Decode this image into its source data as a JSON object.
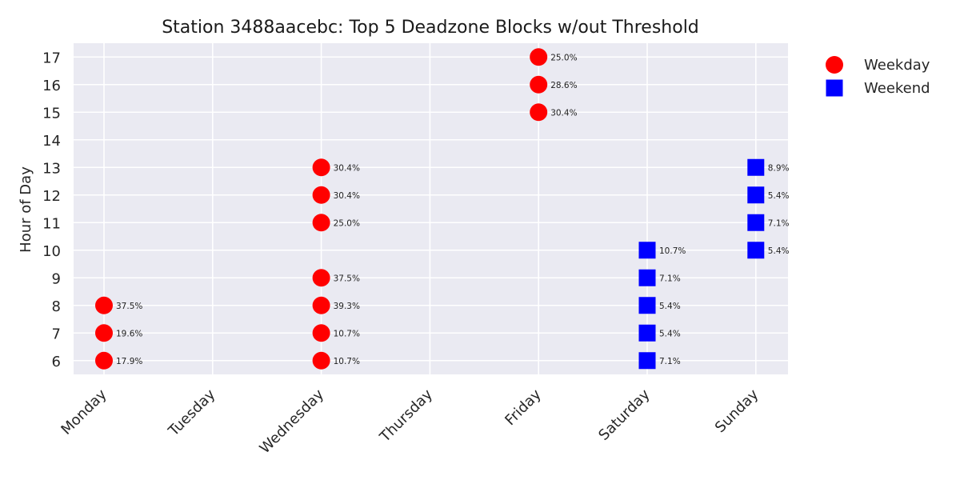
{
  "chart_data": {
    "type": "scatter",
    "title": "Station 3488aacebc: Top 5 Deadzone Blocks w/out Threshold",
    "xlabel": "",
    "ylabel": "Hour of Day",
    "categories": [
      "Monday",
      "Tuesday",
      "Wednesday",
      "Thursday",
      "Friday",
      "Saturday",
      "Sunday"
    ],
    "y_ticks": [
      6,
      7,
      8,
      9,
      10,
      11,
      12,
      13,
      14,
      15,
      16,
      17
    ],
    "ylim": [
      5.5,
      17.5
    ],
    "grid": true,
    "legend_position": "outside-top-right",
    "colors": {
      "Weekday": "#ff0000",
      "Weekend": "#0000ff",
      "background": "#eaeaf2",
      "grid": "#ffffff"
    },
    "series": [
      {
        "name": "Weekday",
        "marker": "circle",
        "points": [
          {
            "day": "Monday",
            "hour": 8,
            "label": "37.5%"
          },
          {
            "day": "Monday",
            "hour": 7,
            "label": "19.6%"
          },
          {
            "day": "Monday",
            "hour": 6,
            "label": "17.9%"
          },
          {
            "day": "Wednesday",
            "hour": 13,
            "label": "30.4%"
          },
          {
            "day": "Wednesday",
            "hour": 12,
            "label": "30.4%"
          },
          {
            "day": "Wednesday",
            "hour": 11,
            "label": "25.0%"
          },
          {
            "day": "Wednesday",
            "hour": 9,
            "label": "37.5%"
          },
          {
            "day": "Wednesday",
            "hour": 8,
            "label": "39.3%"
          },
          {
            "day": "Wednesday",
            "hour": 7,
            "label": "10.7%"
          },
          {
            "day": "Wednesday",
            "hour": 6,
            "label": "10.7%"
          },
          {
            "day": "Friday",
            "hour": 17,
            "label": "25.0%"
          },
          {
            "day": "Friday",
            "hour": 16,
            "label": "28.6%"
          },
          {
            "day": "Friday",
            "hour": 15,
            "label": "30.4%"
          }
        ]
      },
      {
        "name": "Weekend",
        "marker": "square",
        "points": [
          {
            "day": "Saturday",
            "hour": 10,
            "label": "10.7%"
          },
          {
            "day": "Saturday",
            "hour": 9,
            "label": "7.1%"
          },
          {
            "day": "Saturday",
            "hour": 8,
            "label": "5.4%"
          },
          {
            "day": "Saturday",
            "hour": 7,
            "label": "5.4%"
          },
          {
            "day": "Saturday",
            "hour": 6,
            "label": "7.1%"
          },
          {
            "day": "Sunday",
            "hour": 13,
            "label": "8.9%"
          },
          {
            "day": "Sunday",
            "hour": 12,
            "label": "5.4%"
          },
          {
            "day": "Sunday",
            "hour": 11,
            "label": "7.1%"
          },
          {
            "day": "Sunday",
            "hour": 10,
            "label": "5.4%"
          }
        ]
      }
    ]
  }
}
